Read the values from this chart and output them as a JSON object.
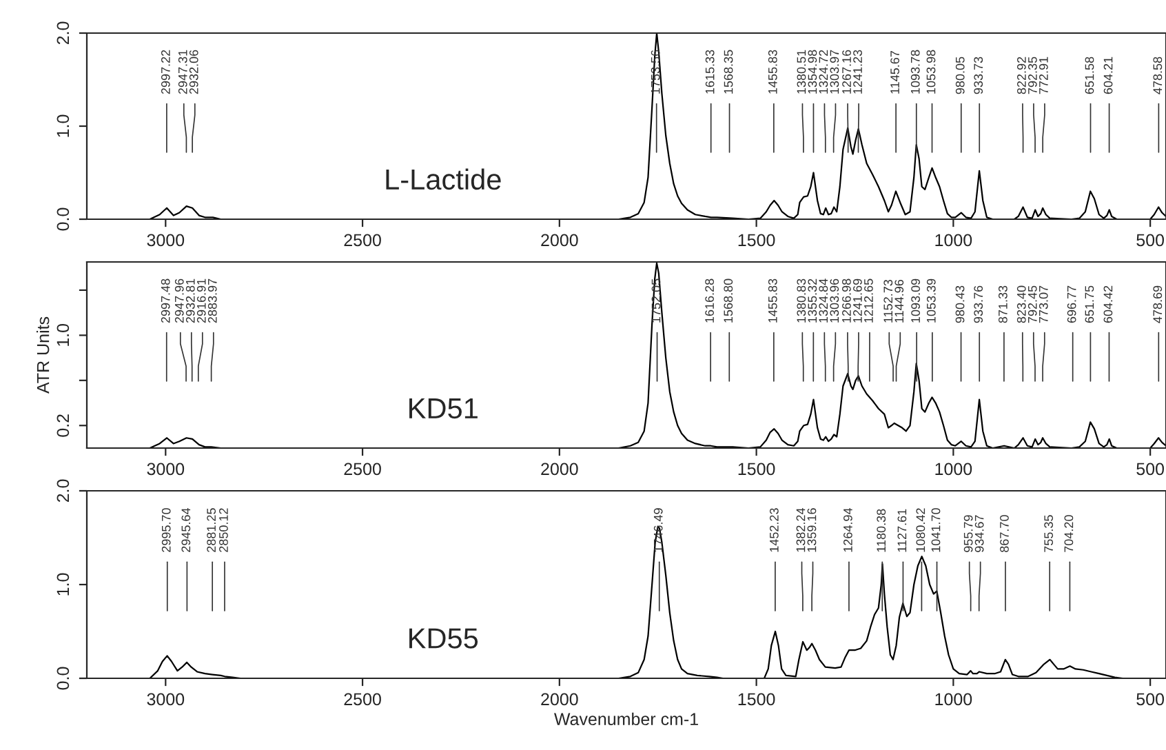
{
  "chart_data": [
    {
      "type": "line",
      "xlim": [
        3200,
        460
      ],
      "ylim": [
        0,
        2.0
      ],
      "xticks": [
        3000,
        2500,
        2000,
        1500,
        1000,
        500
      ],
      "yticks": [
        {
          "value": 0,
          "label": "0.0"
        },
        {
          "value": 1,
          "label": "1.0"
        },
        {
          "value": 2,
          "label": "2.0"
        }
      ],
      "series": [
        {
          "color": "#000000",
          "x": [
            3200,
            3040,
            3015,
            2997,
            2980,
            2965,
            2947,
            2932,
            2915,
            2900,
            2880,
            2860,
            1850,
            1820,
            1800,
            1785,
            1775,
            1765,
            1758,
            1753,
            1748,
            1740,
            1730,
            1720,
            1710,
            1700,
            1690,
            1675,
            1655,
            1630,
            1615,
            1600,
            1560,
            1520,
            1490,
            1475,
            1465,
            1455,
            1445,
            1435,
            1420,
            1405,
            1395,
            1390,
            1380,
            1370,
            1362,
            1355,
            1345,
            1337,
            1330,
            1324,
            1317,
            1310,
            1303,
            1296,
            1288,
            1280,
            1268,
            1260,
            1255,
            1248,
            1241,
            1232,
            1220,
            1205,
            1190,
            1175,
            1165,
            1157,
            1146,
            1135,
            1122,
            1110,
            1100,
            1094,
            1087,
            1080,
            1072,
            1062,
            1054,
            1045,
            1035,
            1025,
            1015,
            1005,
            995,
            980,
            968,
            955,
            945,
            934,
            925,
            915,
            900,
            845,
            835,
            823,
            812,
            800,
            792,
            785,
            778,
            773,
            765,
            755,
            700,
            680,
            665,
            652,
            642,
            630,
            618,
            610,
            604,
            598,
            585,
            500,
            490,
            479,
            470,
            460
          ],
          "values": [
            0,
            0,
            0.05,
            0.12,
            0.04,
            0.07,
            0.14,
            0.12,
            0.04,
            0.02,
            0.02,
            0,
            0,
            0.02,
            0.06,
            0.18,
            0.45,
            1.2,
            1.75,
            2.0,
            1.8,
            1.35,
            0.9,
            0.6,
            0.38,
            0.25,
            0.17,
            0.1,
            0.05,
            0.03,
            0.02,
            0.02,
            0.01,
            0,
            0.01,
            0.08,
            0.15,
            0.2,
            0.15,
            0.08,
            0.03,
            0.01,
            0.05,
            0.18,
            0.24,
            0.25,
            0.35,
            0.5,
            0.2,
            0.06,
            0.05,
            0.12,
            0.05,
            0.06,
            0.13,
            0.08,
            0.35,
            0.75,
            0.98,
            0.78,
            0.7,
            0.85,
            0.97,
            0.8,
            0.6,
            0.48,
            0.35,
            0.2,
            0.08,
            0.15,
            0.3,
            0.18,
            0.05,
            0.08,
            0.45,
            0.8,
            0.65,
            0.35,
            0.32,
            0.45,
            0.55,
            0.45,
            0.35,
            0.2,
            0.06,
            0.02,
            0.02,
            0.07,
            0.02,
            0.01,
            0.08,
            0.52,
            0.2,
            0.02,
            0,
            0,
            0.03,
            0.13,
            0.02,
            0.01,
            0.1,
            0.03,
            0.06,
            0.12,
            0.05,
            0.01,
            0,
            0.01,
            0.08,
            0.3,
            0.22,
            0.05,
            0.01,
            0.04,
            0.1,
            0.03,
            0,
            0,
            0.05,
            0.13,
            0.07,
            0.03
          ]
        }
      ],
      "annotations": [
        "L-Lactide",
        {
          "text": "2997.22",
          "x": 2997.22
        },
        {
          "text": "2947.31",
          "x": 2947.31
        },
        {
          "text": "2932.06",
          "x": 2932.06
        },
        {
          "text": "1753.56",
          "x": 1753.56
        },
        {
          "text": "1615.33",
          "x": 1615.33
        },
        {
          "text": "1568.35",
          "x": 1568.35
        },
        {
          "text": "1455.83",
          "x": 1455.83
        },
        {
          "text": "1380.51",
          "x": 1380.51
        },
        {
          "text": "1354.98",
          "x": 1354.98
        },
        {
          "text": "1324.72",
          "x": 1324.72
        },
        {
          "text": "1303.97",
          "x": 1303.97
        },
        {
          "text": "1267.16",
          "x": 1267.16
        },
        {
          "text": "1241.23",
          "x": 1241.23
        },
        {
          "text": "1145.67",
          "x": 1145.67
        },
        {
          "text": "1093.78",
          "x": 1093.78
        },
        {
          "text": "1053.98",
          "x": 1053.98
        },
        {
          "text": "980.05",
          "x": 980.05
        },
        {
          "text": "933.73",
          "x": 933.73
        },
        {
          "text": "822.92",
          "x": 822.92
        },
        {
          "text": "792.35",
          "x": 792.35
        },
        {
          "text": "772.91",
          "x": 772.91
        },
        {
          "text": "651.58",
          "x": 651.58
        },
        {
          "text": "604.21",
          "x": 604.21
        },
        {
          "text": "478.58",
          "x": 478.58
        }
      ]
    },
    {
      "type": "line",
      "xlim": [
        3200,
        460
      ],
      "ylim": [
        0,
        1.65
      ],
      "ylabel": "ATR Units",
      "xticks": [
        3000,
        2500,
        2000,
        1500,
        1000,
        500
      ],
      "yticks": [
        {
          "value": 0.2,
          "label": "0.2"
        },
        {
          "value": 0.6,
          "label": null
        },
        {
          "value": 1.0,
          "label": "1.0"
        },
        {
          "value": 1.4,
          "label": null
        }
      ],
      "series": [
        {
          "color": "#000000",
          "x": [
            3200,
            3040,
            3015,
            2997,
            2980,
            2965,
            2947,
            2932,
            2915,
            2900,
            2884,
            2860,
            1850,
            1820,
            1800,
            1785,
            1775,
            1765,
            1758,
            1753,
            1748,
            1740,
            1730,
            1720,
            1710,
            1700,
            1690,
            1675,
            1655,
            1630,
            1616,
            1600,
            1560,
            1520,
            1490,
            1475,
            1465,
            1455,
            1445,
            1435,
            1420,
            1405,
            1395,
            1390,
            1380,
            1370,
            1362,
            1355,
            1345,
            1337,
            1330,
            1324,
            1317,
            1310,
            1303,
            1296,
            1288,
            1280,
            1268,
            1260,
            1255,
            1248,
            1241,
            1232,
            1220,
            1205,
            1190,
            1175,
            1165,
            1157,
            1150,
            1140,
            1130,
            1120,
            1110,
            1100,
            1094,
            1087,
            1080,
            1072,
            1062,
            1054,
            1045,
            1035,
            1025,
            1015,
            1005,
            995,
            980,
            968,
            955,
            945,
            934,
            925,
            915,
            900,
            871,
            845,
            835,
            823,
            812,
            800,
            792,
            785,
            778,
            773,
            765,
            755,
            700,
            680,
            665,
            652,
            642,
            630,
            618,
            610,
            604,
            598,
            585,
            500,
            490,
            479,
            470,
            460
          ],
          "values": [
            0,
            0,
            0.04,
            0.09,
            0.04,
            0.06,
            0.09,
            0.08,
            0.03,
            0.01,
            0.01,
            0,
            0,
            0.02,
            0.05,
            0.15,
            0.4,
            1.1,
            1.5,
            1.64,
            1.55,
            1.2,
            0.8,
            0.5,
            0.32,
            0.2,
            0.13,
            0.07,
            0.04,
            0.02,
            0.02,
            0.01,
            0.01,
            0,
            0.01,
            0.07,
            0.14,
            0.17,
            0.13,
            0.07,
            0.03,
            0.02,
            0.06,
            0.15,
            0.2,
            0.21,
            0.3,
            0.43,
            0.18,
            0.08,
            0.07,
            0.1,
            0.06,
            0.08,
            0.12,
            0.1,
            0.3,
            0.55,
            0.66,
            0.55,
            0.52,
            0.6,
            0.64,
            0.55,
            0.48,
            0.42,
            0.35,
            0.3,
            0.18,
            0.2,
            0.22,
            0.2,
            0.18,
            0.15,
            0.2,
            0.5,
            0.75,
            0.6,
            0.35,
            0.32,
            0.4,
            0.45,
            0.4,
            0.32,
            0.2,
            0.07,
            0.03,
            0.02,
            0.06,
            0.02,
            0.01,
            0.06,
            0.43,
            0.15,
            0.02,
            0,
            0.02,
            0,
            0.03,
            0.09,
            0.02,
            0.01,
            0.08,
            0.03,
            0.05,
            0.09,
            0.04,
            0.01,
            0,
            0.01,
            0.06,
            0.23,
            0.17,
            0.04,
            0.01,
            0.03,
            0.08,
            0.02,
            0,
            0,
            0.04,
            0.09,
            0.05,
            0.02
          ]
        }
      ],
      "annotations": [
        "KD51",
        {
          "text": "2997.48",
          "x": 2997.48
        },
        {
          "text": "2947.96",
          "x": 2947.96
        },
        {
          "text": "2932.81",
          "x": 2932.81
        },
        {
          "text": "2916.91",
          "x": 2916.91
        },
        {
          "text": "2883.97",
          "x": 2883.97
        },
        {
          "text": "1752.05",
          "x": 1752.05
        },
        {
          "text": "1616.28",
          "x": 1616.28
        },
        {
          "text": "1568.80",
          "x": 1568.8
        },
        {
          "text": "1455.83",
          "x": 1455.83
        },
        {
          "text": "1380.83",
          "x": 1380.83
        },
        {
          "text": "1355.32",
          "x": 1355.32
        },
        {
          "text": "1324.84",
          "x": 1324.84
        },
        {
          "text": "1303.96",
          "x": 1303.96
        },
        {
          "text": "1266.98",
          "x": 1266.98
        },
        {
          "text": "1241.69",
          "x": 1241.69
        },
        {
          "text": "1212.65",
          "x": 1212.65
        },
        {
          "text": "1152.73",
          "x": 1152.73
        },
        {
          "text": "1144.96",
          "x": 1144.96
        },
        {
          "text": "1093.09",
          "x": 1093.09
        },
        {
          "text": "1053.39",
          "x": 1053.39
        },
        {
          "text": "980.43",
          "x": 980.43
        },
        {
          "text": "933.76",
          "x": 933.76
        },
        {
          "text": "871.33",
          "x": 871.33
        },
        {
          "text": "823.40",
          "x": 823.4
        },
        {
          "text": "792.45",
          "x": 792.45
        },
        {
          "text": "773.07",
          "x": 773.07
        },
        {
          "text": "696.77",
          "x": 696.77
        },
        {
          "text": "651.75",
          "x": 651.75
        },
        {
          "text": "604.42",
          "x": 604.42
        },
        {
          "text": "478.69",
          "x": 478.69
        }
      ]
    },
    {
      "type": "line",
      "xlim": [
        3200,
        460
      ],
      "ylim": [
        0,
        2.0
      ],
      "xlabel": "Wavenumber cm-1",
      "xticks": [
        3000,
        2500,
        2000,
        1500,
        1000,
        500
      ],
      "yticks": [
        {
          "value": 0,
          "label": "0.0"
        },
        {
          "value": 1,
          "label": "1.0"
        },
        {
          "value": 2,
          "label": "2.0"
        }
      ],
      "series": [
        {
          "color": "#000000",
          "x": [
            3200,
            3040,
            3020,
            3008,
            2996,
            2985,
            2970,
            2958,
            2946,
            2935,
            2920,
            2900,
            2881,
            2860,
            2850,
            2830,
            2810,
            1850,
            1820,
            1800,
            1785,
            1775,
            1765,
            1757,
            1750,
            1746,
            1740,
            1730,
            1720,
            1710,
            1700,
            1690,
            1675,
            1650,
            1620,
            1600,
            1585,
            1480,
            1470,
            1462,
            1452,
            1444,
            1436,
            1425,
            1400,
            1392,
            1382,
            1372,
            1365,
            1359,
            1350,
            1340,
            1325,
            1300,
            1285,
            1275,
            1265,
            1250,
            1235,
            1220,
            1210,
            1200,
            1190,
            1183,
            1180,
            1175,
            1168,
            1160,
            1153,
            1145,
            1137,
            1128,
            1118,
            1110,
            1100,
            1090,
            1080,
            1070,
            1060,
            1050,
            1042,
            1032,
            1022,
            1012,
            1000,
            985,
            965,
            956,
            950,
            940,
            934,
            915,
            895,
            880,
            868,
            860,
            850,
            835,
            810,
            790,
            770,
            755,
            745,
            735,
            720,
            704,
            690,
            670,
            650,
            630,
            610,
            590,
            570,
            460
          ],
          "values": [
            0,
            0,
            0.08,
            0.18,
            0.24,
            0.18,
            0.08,
            0.12,
            0.17,
            0.12,
            0.07,
            0.05,
            0.04,
            0.03,
            0.02,
            0.01,
            0,
            0,
            0.02,
            0.06,
            0.2,
            0.45,
            1.0,
            1.45,
            1.62,
            1.6,
            1.45,
            1.1,
            0.7,
            0.4,
            0.2,
            0.1,
            0.05,
            0.03,
            0.02,
            0.01,
            0,
            0,
            0.1,
            0.35,
            0.5,
            0.35,
            0.1,
            0.03,
            0.02,
            0.2,
            0.39,
            0.3,
            0.33,
            0.37,
            0.3,
            0.2,
            0.12,
            0.11,
            0.12,
            0.22,
            0.3,
            0.3,
            0.32,
            0.4,
            0.55,
            0.68,
            0.75,
            1.0,
            1.22,
            0.9,
            0.55,
            0.25,
            0.2,
            0.35,
            0.65,
            0.8,
            0.66,
            0.7,
            1.0,
            1.2,
            1.3,
            1.2,
            1.0,
            0.9,
            0.93,
            0.7,
            0.45,
            0.25,
            0.1,
            0.05,
            0.04,
            0.08,
            0.05,
            0.05,
            0.07,
            0.05,
            0.05,
            0.07,
            0.2,
            0.15,
            0.04,
            0.02,
            0.02,
            0.06,
            0.15,
            0.2,
            0.15,
            0.1,
            0.1,
            0.13,
            0.1,
            0.09,
            0.07,
            0.05,
            0.03,
            0.01,
            0,
            0
          ]
        }
      ],
      "annotations": [
        "KD55",
        {
          "text": "2995.70",
          "x": 2995.7
        },
        {
          "text": "2945.64",
          "x": 2945.64
        },
        {
          "text": "2881.25",
          "x": 2881.25
        },
        {
          "text": "2850.12",
          "x": 2850.12
        },
        {
          "text": "1746.49",
          "x": 1746.49
        },
        {
          "text": "1452.23",
          "x": 1452.23
        },
        {
          "text": "1382.24",
          "x": 1382.24
        },
        {
          "text": "1359.16",
          "x": 1359.16
        },
        {
          "text": "1264.94",
          "x": 1264.94
        },
        {
          "text": "1180.38",
          "x": 1180.38
        },
        {
          "text": "1127.61",
          "x": 1127.61
        },
        {
          "text": "1080.42",
          "x": 1080.42
        },
        {
          "text": "1041.70",
          "x": 1041.7
        },
        {
          "text": "955.79",
          "x": 955.79
        },
        {
          "text": "934.67",
          "x": 934.67
        },
        {
          "text": "867.70",
          "x": 867.7
        },
        {
          "text": "755.35",
          "x": 755.35
        },
        {
          "text": "704.20",
          "x": 704.2
        }
      ]
    }
  ]
}
